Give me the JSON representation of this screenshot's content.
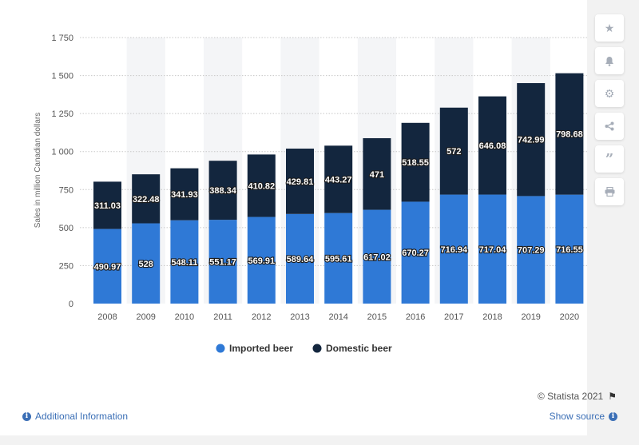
{
  "toolbar": {
    "icons": [
      "star-icon",
      "bell-icon",
      "gear-icon",
      "share-icon",
      "quote-icon",
      "print-icon"
    ]
  },
  "footer": {
    "copyright": "© Statista 2021",
    "additional_info": "Additional Information",
    "show_source": "Show source"
  },
  "colors": {
    "imported": "#2f79d6",
    "domestic": "#13263e",
    "grid": "#c8c8c8",
    "band": "#f4f5f7",
    "axis_text": "#555555"
  },
  "chart_data": {
    "type": "bar",
    "stacked": true,
    "title": "",
    "xlabel": "",
    "ylabel": "Sales in million Canadian dollars",
    "ylim": [
      0,
      1750
    ],
    "yticks": [
      0,
      250,
      500,
      750,
      1000,
      1250,
      1500,
      1750
    ],
    "ytick_labels": [
      "0",
      "250",
      "500",
      "750",
      "1 000",
      "1 250",
      "1 500",
      "1 750"
    ],
    "categories": [
      "2008",
      "2009",
      "2010",
      "2011",
      "2012",
      "2013",
      "2014",
      "2015",
      "2016",
      "2017",
      "2018",
      "2019",
      "2020"
    ],
    "series": [
      {
        "name": "Imported beer",
        "values": [
          490.97,
          528,
          548.11,
          551.17,
          569.91,
          589.64,
          595.61,
          617.02,
          670.27,
          716.94,
          717.04,
          707.29,
          716.55
        ],
        "labels": [
          "490.97",
          "528",
          "548.11",
          "551.17",
          "569.91",
          "589.64",
          "595.61",
          "617.02",
          "670.27",
          "716.94",
          "717.04",
          "707.29",
          "716.55"
        ]
      },
      {
        "name": "Domestic beer",
        "values": [
          311.03,
          322.48,
          341.93,
          388.34,
          410.82,
          429.81,
          443.27,
          471,
          518.55,
          572,
          646.08,
          742.99,
          798.68
        ],
        "labels": [
          "311.03",
          "322.48",
          "341.93",
          "388.34",
          "410.82",
          "429.81",
          "443.27",
          "471",
          "518.55",
          "572",
          "646.08",
          "742.99",
          "798.68"
        ]
      }
    ],
    "legend_position": "bottom",
    "grid": true
  }
}
